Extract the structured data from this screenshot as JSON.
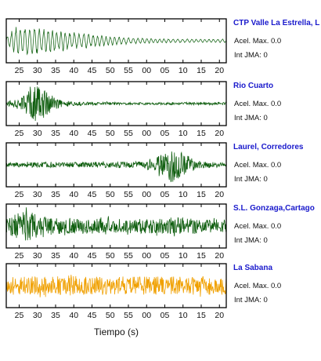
{
  "chart_data": {
    "type": "line",
    "xlabel": "Tiempo (s)",
    "x_tick_labels": [
      "25",
      "30",
      "35",
      "40",
      "45",
      "50",
      "55",
      "00",
      "05",
      "10",
      "15",
      "20"
    ],
    "series": [
      {
        "name": "CTP Valle La Estrella, L",
        "color": "#1f6b1f",
        "envelope": [
          0.2,
          0.82,
          0.8,
          0.72,
          0.64,
          0.56,
          0.48,
          0.41,
          0.34,
          0.28,
          0.23,
          0.19,
          0.16,
          0.14,
          0.12,
          0.11,
          0.1,
          0.1,
          0.09,
          0.09,
          0.09,
          0.09
        ],
        "style": "ringing",
        "acel_max": "Acel. Max. 0.0",
        "int_jma": "Int JMA: 0"
      },
      {
        "name": "Rio Cuarto",
        "color": "#0f5e0f",
        "envelope": [
          0.08,
          0.25,
          0.55,
          0.95,
          0.5,
          0.22,
          0.12,
          0.1,
          0.08,
          0.07,
          0.07,
          0.06,
          0.06,
          0.06,
          0.06,
          0.06,
          0.06,
          0.06,
          0.07,
          0.07,
          0.07,
          0.07
        ],
        "style": "noise",
        "acel_max": "Acel. Max. 0.0",
        "int_jma": "Int JMA: 0"
      },
      {
        "name": "Laurel, Corredores",
        "color": "#0f5e0f",
        "envelope": [
          0.1,
          0.12,
          0.12,
          0.13,
          0.13,
          0.13,
          0.13,
          0.13,
          0.13,
          0.14,
          0.14,
          0.15,
          0.15,
          0.18,
          0.3,
          0.55,
          0.95,
          0.55,
          0.25,
          0.15,
          0.13,
          0.12
        ],
        "style": "noise",
        "acel_max": "Acel. Max. 0.0",
        "int_jma": "Int JMA: 0"
      },
      {
        "name": "S.L. Gonzaga,Cartago",
        "color": "#0f5e0f",
        "envelope": [
          0.35,
          0.65,
          0.75,
          0.55,
          0.45,
          0.4,
          0.4,
          0.38,
          0.38,
          0.36,
          0.36,
          0.35,
          0.36,
          0.36,
          0.36,
          0.38,
          0.45,
          0.4,
          0.35,
          0.33,
          0.33,
          0.33
        ],
        "style": "noise",
        "acel_max": "Acel. Max. 0.0",
        "int_jma": "Int JMA: 0"
      },
      {
        "name": "La Sabana",
        "color": "#f0a000",
        "envelope": [
          0.45,
          0.45,
          0.46,
          0.46,
          0.46,
          0.48,
          0.55,
          0.48,
          0.46,
          0.46,
          0.45,
          0.46,
          0.45,
          0.45,
          0.45,
          0.45,
          0.46,
          0.45,
          0.45,
          0.45,
          0.45,
          0.45
        ],
        "style": "noise",
        "acel_max": "Acel. Max. 0.0",
        "int_jma": "Int JMA: 0"
      }
    ]
  }
}
